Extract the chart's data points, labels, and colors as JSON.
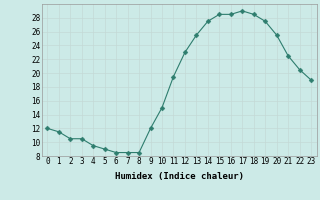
{
  "x": [
    0,
    1,
    2,
    3,
    4,
    5,
    6,
    7,
    8,
    9,
    10,
    11,
    12,
    13,
    14,
    15,
    16,
    17,
    18,
    19,
    20,
    21,
    22,
    23
  ],
  "y": [
    12,
    11.5,
    10.5,
    10.5,
    9.5,
    9,
    8.5,
    8.5,
    8.5,
    12,
    15,
    19.5,
    23,
    25.5,
    27.5,
    28.5,
    28.5,
    29,
    28.5,
    27.5,
    25.5,
    22.5,
    20.5,
    19
  ],
  "line_color": "#2e7d6e",
  "marker": "D",
  "marker_size": 2.5,
  "bg_color": "#cceae7",
  "grid_color": "#c4d9d6",
  "xlabel": "Humidex (Indice chaleur)",
  "xlim": [
    -0.5,
    23.5
  ],
  "ylim": [
    8,
    30
  ],
  "yticks": [
    8,
    10,
    12,
    14,
    16,
    18,
    20,
    22,
    24,
    26,
    28
  ],
  "xticks": [
    0,
    1,
    2,
    3,
    4,
    5,
    6,
    7,
    8,
    9,
    10,
    11,
    12,
    13,
    14,
    15,
    16,
    17,
    18,
    19,
    20,
    21,
    22,
    23
  ],
  "label_fontsize": 6.5,
  "tick_fontsize": 5.5
}
